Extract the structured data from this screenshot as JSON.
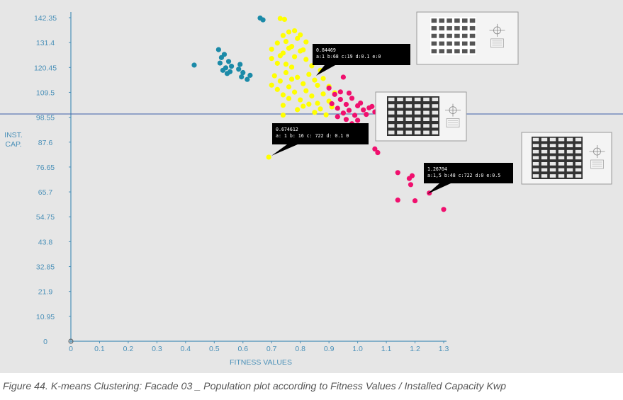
{
  "caption": "Figure 44. K-means Clustering: Facade 03 _ Population plot according to Fitness Values / Installed Capacity Kwp",
  "colors": {
    "background": "#e6e6e6",
    "axis": "#4a90b8",
    "reference_line": "#3d5fa8",
    "cluster_teal": "#1b8aa8",
    "cluster_yellow": "#ffff00",
    "cluster_magenta": "#f0106e",
    "annotation_bg": "#000000",
    "annotation_text": "#ffffff"
  },
  "chart_data": {
    "type": "scatter",
    "title": "",
    "xlabel": "FITNESS VALUES",
    "ylabel_lines": [
      "INST.",
      "CAP."
    ],
    "xlim": [
      0,
      1.3
    ],
    "ylim": [
      0,
      142.35
    ],
    "x_ticks": [
      "0",
      "0.1",
      "0.2",
      "0.3",
      "0.4",
      "0.5",
      "0.6",
      "0.7",
      "0.8",
      "0.9",
      "1.0",
      "1.1",
      "1.2",
      "1.3"
    ],
    "x_tick_values": [
      0,
      0.1,
      0.2,
      0.3,
      0.4,
      0.5,
      0.6,
      0.7,
      0.8,
      0.9,
      1.0,
      1.1,
      1.2,
      1.3
    ],
    "y_ticks": [
      "0",
      "10.95",
      "21.9",
      "32.85",
      "43.8",
      "54.75",
      "65.7",
      "76.65",
      "87.6",
      "98.55",
      "109.5",
      "120.45",
      "131.4",
      "142.35"
    ],
    "y_tick_values": [
      0,
      10.95,
      21.9,
      32.85,
      43.8,
      54.75,
      65.7,
      76.65,
      87.6,
      98.55,
      109.5,
      120.45,
      131.4,
      142.35
    ],
    "reference_line_y": 100,
    "grid": false,
    "series": [
      {
        "color": "#1b8aa8",
        "points": [
          [
            0.43,
            121.5
          ],
          [
            0.515,
            128.3
          ],
          [
            0.525,
            124.8
          ],
          [
            0.535,
            126.2
          ],
          [
            0.52,
            122.4
          ],
          [
            0.54,
            120.3
          ],
          [
            0.53,
            119.2
          ],
          [
            0.55,
            123.1
          ],
          [
            0.545,
            117.8
          ],
          [
            0.555,
            118.6
          ],
          [
            0.56,
            121.0
          ],
          [
            0.585,
            119.7
          ],
          [
            0.595,
            116.3
          ],
          [
            0.6,
            118.2
          ],
          [
            0.615,
            115.2
          ],
          [
            0.625,
            117.0
          ],
          [
            0.59,
            121.8
          ],
          [
            0.66,
            142.2
          ],
          [
            0.67,
            141.4
          ]
        ]
      },
      {
        "color": "#ffff00",
        "points": [
          [
            0.69,
            81.0
          ],
          [
            0.74,
            99.5
          ],
          [
            0.73,
            142.0
          ],
          [
            0.745,
            141.6
          ],
          [
            0.7,
            128.5
          ],
          [
            0.72,
            131.2
          ],
          [
            0.74,
            134.5
          ],
          [
            0.76,
            136.1
          ],
          [
            0.78,
            136.6
          ],
          [
            0.8,
            134.8
          ],
          [
            0.82,
            131.7
          ],
          [
            0.7,
            124.4
          ],
          [
            0.72,
            122.3
          ],
          [
            0.74,
            126.8
          ],
          [
            0.76,
            128.9
          ],
          [
            0.78,
            125.2
          ],
          [
            0.8,
            127.7
          ],
          [
            0.82,
            124.0
          ],
          [
            0.84,
            121.2
          ],
          [
            0.71,
            116.8
          ],
          [
            0.73,
            114.5
          ],
          [
            0.75,
            118.2
          ],
          [
            0.77,
            120.6
          ],
          [
            0.79,
            116.1
          ],
          [
            0.81,
            113.3
          ],
          [
            0.83,
            117.4
          ],
          [
            0.85,
            114.9
          ],
          [
            0.72,
            110.8
          ],
          [
            0.74,
            108.4
          ],
          [
            0.76,
            111.9
          ],
          [
            0.78,
            109.6
          ],
          [
            0.8,
            106.2
          ],
          [
            0.82,
            110.2
          ],
          [
            0.84,
            107.9
          ],
          [
            0.86,
            104.7
          ],
          [
            0.88,
            108.8
          ],
          [
            0.9,
            105.6
          ],
          [
            0.79,
            101.9
          ],
          [
            0.81,
            103.4
          ],
          [
            0.83,
            104.3
          ],
          [
            0.85,
            100.7
          ],
          [
            0.87,
            102.2
          ],
          [
            0.89,
            99.6
          ],
          [
            0.91,
            103.1
          ],
          [
            0.75,
            131.9
          ],
          [
            0.77,
            129.7
          ],
          [
            0.79,
            133.2
          ],
          [
            0.81,
            128.2
          ],
          [
            0.73,
            125.6
          ],
          [
            0.75,
            121.9
          ],
          [
            0.77,
            115.3
          ],
          [
            0.87,
            119.2
          ],
          [
            0.86,
            112.6
          ],
          [
            0.88,
            115.6
          ],
          [
            0.9,
            112.1
          ],
          [
            0.92,
            109.3
          ],
          [
            0.7,
            112.7
          ],
          [
            0.74,
            103.8
          ],
          [
            0.76,
            106.8
          ]
        ]
      },
      {
        "color": "#f0106e",
        "points": [
          [
            0.92,
            108.6
          ],
          [
            0.94,
            106.4
          ],
          [
            0.96,
            104.2
          ],
          [
            0.98,
            106.9
          ],
          [
            1.0,
            103.6
          ],
          [
            1.02,
            101.8
          ],
          [
            1.04,
            102.7
          ],
          [
            1.06,
            100.9
          ],
          [
            0.93,
            102.5
          ],
          [
            0.95,
            100.4
          ],
          [
            0.97,
            101.6
          ],
          [
            0.99,
            99.4
          ],
          [
            1.01,
            104.8
          ],
          [
            1.03,
            99.8
          ],
          [
            1.05,
            103.3
          ],
          [
            1.07,
            101.2
          ],
          [
            0.94,
            109.7
          ],
          [
            0.96,
            97.6
          ],
          [
            0.98,
            95.7
          ],
          [
            1.0,
            97.2
          ],
          [
            0.91,
            104.5
          ],
          [
            1.08,
            99.3
          ],
          [
            1.09,
            102.4
          ],
          [
            0.97,
            109.2
          ],
          [
            0.93,
            98.8
          ],
          [
            0.95,
            116.2
          ],
          [
            0.9,
            111.4
          ],
          [
            1.06,
            84.6
          ],
          [
            1.07,
            83.0
          ],
          [
            1.14,
            74.2
          ],
          [
            1.18,
            71.6
          ],
          [
            1.185,
            68.9
          ],
          [
            1.19,
            72.8
          ],
          [
            1.25,
            65.2
          ],
          [
            1.14,
            62.1
          ],
          [
            1.2,
            61.8
          ],
          [
            1.3,
            58.0
          ]
        ]
      }
    ],
    "annotations": [
      {
        "line1": "0.84469",
        "line2": "a:1 b:68 c:19 d:0.1 e:0"
      },
      {
        "line1": "0.674612",
        "line2": "a: 1 b: 16 c: 722 d: 0.1 0"
      },
      {
        "line1": "1.26704",
        "line2": "a:1,5 b:48 c:722 d:0 e:0.5"
      }
    ]
  }
}
